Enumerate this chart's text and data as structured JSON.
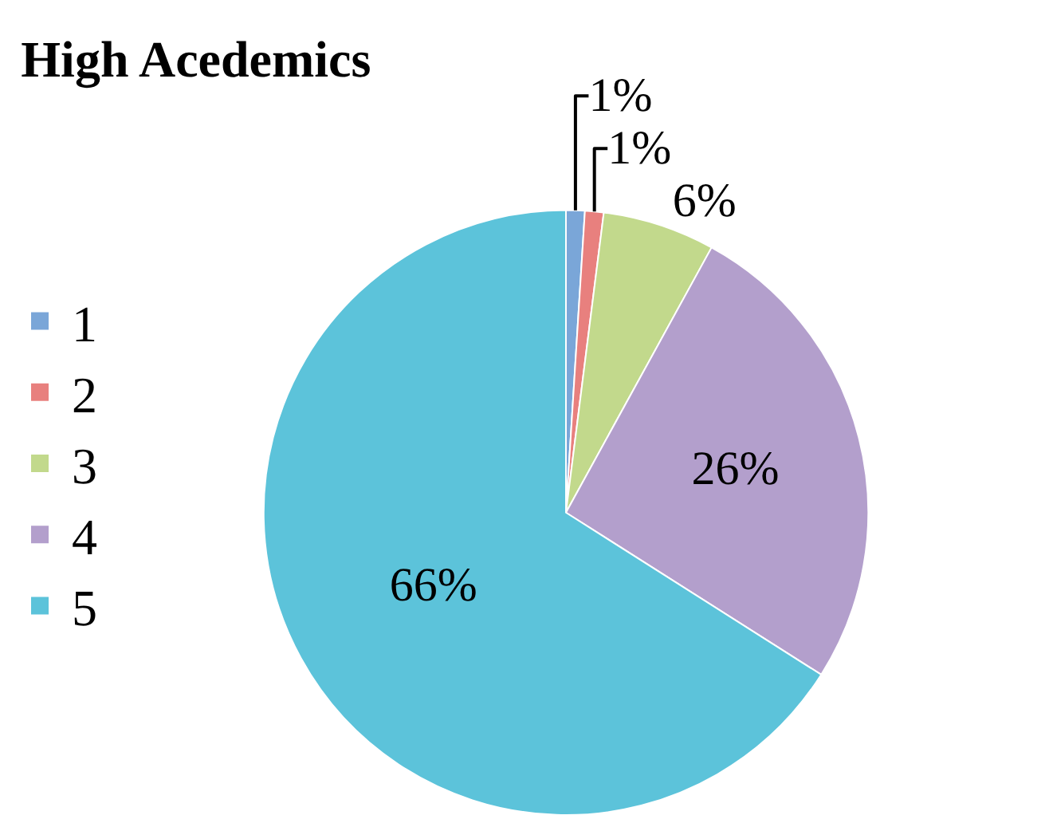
{
  "chart_data": {
    "type": "pie",
    "title": "High Acedemics",
    "categories": [
      "1",
      "2",
      "3",
      "4",
      "5"
    ],
    "values": [
      1,
      1,
      6,
      26,
      66
    ],
    "value_labels": [
      "1%",
      "1%",
      "6%",
      "26%",
      "66%"
    ],
    "colors": [
      "#7aa6d8",
      "#e8807e",
      "#c2d98c",
      "#b39fcc",
      "#5cc3da"
    ],
    "legend": "left"
  }
}
